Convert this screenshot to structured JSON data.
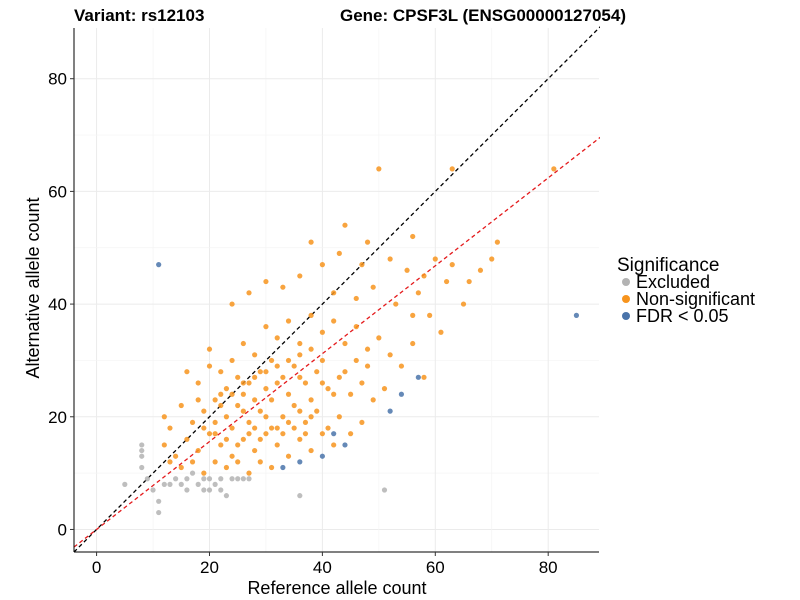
{
  "chart_data": {
    "type": "scatter",
    "title_left": "Variant: rs12103",
    "title_right": "Gene: CPSF3L (ENSG00000127054)",
    "xlabel": "Reference allele count",
    "ylabel": "Alternative allele count",
    "xlim": [
      -4,
      89
    ],
    "ylim": [
      -4,
      89
    ],
    "x_ticks": [
      0,
      20,
      40,
      60,
      80
    ],
    "y_ticks": [
      0,
      20,
      40,
      60,
      80
    ],
    "grid": true,
    "legend": {
      "title": "Significance",
      "position": "right",
      "entries": [
        {
          "name": "Excluded",
          "color": "#b3b3b3"
        },
        {
          "name": "Non-significant",
          "color": "#f7941d"
        },
        {
          "name": "FDR < 0.05",
          "color": "#4a74aa"
        }
      ]
    },
    "reference_lines": [
      {
        "name": "identity",
        "slope": 1,
        "intercept": 0,
        "color": "#000000",
        "style": "dashed"
      },
      {
        "name": "fit",
        "slope": 0.78,
        "intercept": 0,
        "color": "#e41a1c",
        "style": "dashed"
      }
    ],
    "series": [
      {
        "name": "Excluded",
        "color": "#b3b3b3",
        "points": [
          [
            5,
            8
          ],
          [
            8,
            15
          ],
          [
            8,
            14
          ],
          [
            8,
            13
          ],
          [
            8,
            11
          ],
          [
            9,
            9
          ],
          [
            10,
            7
          ],
          [
            11,
            5
          ],
          [
            11,
            3
          ],
          [
            12,
            8
          ],
          [
            13,
            8
          ],
          [
            14,
            9
          ],
          [
            15,
            8
          ],
          [
            16,
            9
          ],
          [
            16,
            7
          ],
          [
            17,
            10
          ],
          [
            18,
            8
          ],
          [
            19,
            9
          ],
          [
            19,
            7
          ],
          [
            20,
            9
          ],
          [
            20,
            7
          ],
          [
            21,
            8
          ],
          [
            22,
            9
          ],
          [
            22,
            7
          ],
          [
            23,
            6
          ],
          [
            24,
            9
          ],
          [
            25,
            9
          ],
          [
            26,
            9
          ],
          [
            27,
            9
          ],
          [
            36,
            6
          ],
          [
            51,
            7
          ]
        ]
      },
      {
        "name": "Non-significant",
        "color": "#f7941d",
        "points": [
          [
            50,
            64
          ],
          [
            63,
            64
          ],
          [
            81,
            64
          ],
          [
            68,
            46
          ],
          [
            71,
            51
          ],
          [
            66,
            44
          ],
          [
            62,
            44
          ],
          [
            44,
            54
          ],
          [
            48,
            51
          ],
          [
            56,
            52
          ],
          [
            60,
            48
          ],
          [
            38,
            51
          ],
          [
            43,
            49
          ],
          [
            47,
            47
          ],
          [
            52,
            48
          ],
          [
            55,
            46
          ],
          [
            58,
            45
          ],
          [
            63,
            47
          ],
          [
            65,
            40
          ],
          [
            70,
            48
          ],
          [
            57,
            42
          ],
          [
            59,
            38
          ],
          [
            61,
            35
          ],
          [
            24,
            40
          ],
          [
            27,
            42
          ],
          [
            30,
            44
          ],
          [
            33,
            43
          ],
          [
            36,
            45
          ],
          [
            40,
            47
          ],
          [
            42,
            42
          ],
          [
            46,
            41
          ],
          [
            49,
            43
          ],
          [
            53,
            40
          ],
          [
            56,
            38
          ],
          [
            24,
            30
          ],
          [
            26,
            33
          ],
          [
            28,
            31
          ],
          [
            30,
            36
          ],
          [
            32,
            34
          ],
          [
            34,
            37
          ],
          [
            36,
            33
          ],
          [
            38,
            38
          ],
          [
            40,
            35
          ],
          [
            42,
            37
          ],
          [
            44,
            33
          ],
          [
            46,
            36
          ],
          [
            48,
            32
          ],
          [
            50,
            34
          ],
          [
            52,
            31
          ],
          [
            54,
            29
          ],
          [
            56,
            33
          ],
          [
            58,
            27
          ],
          [
            16,
            28
          ],
          [
            18,
            26
          ],
          [
            20,
            29
          ],
          [
            22,
            24
          ],
          [
            25,
            27
          ],
          [
            27,
            26
          ],
          [
            29,
            28
          ],
          [
            31,
            30
          ],
          [
            33,
            27
          ],
          [
            35,
            29
          ],
          [
            37,
            26
          ],
          [
            39,
            28
          ],
          [
            41,
            25
          ],
          [
            43,
            27
          ],
          [
            45,
            24
          ],
          [
            47,
            26
          ],
          [
            49,
            23
          ],
          [
            51,
            25
          ],
          [
            12,
            20
          ],
          [
            13,
            18
          ],
          [
            15,
            22
          ],
          [
            17,
            19
          ],
          [
            19,
            21
          ],
          [
            21,
            23
          ],
          [
            23,
            20
          ],
          [
            25,
            22
          ],
          [
            27,
            19
          ],
          [
            29,
            21
          ],
          [
            31,
            23
          ],
          [
            33,
            20
          ],
          [
            35,
            22
          ],
          [
            37,
            19
          ],
          [
            39,
            21
          ],
          [
            41,
            18
          ],
          [
            43,
            20
          ],
          [
            45,
            17
          ],
          [
            47,
            19
          ],
          [
            12,
            15
          ],
          [
            14,
            13
          ],
          [
            16,
            16
          ],
          [
            18,
            14
          ],
          [
            20,
            17
          ],
          [
            22,
            15
          ],
          [
            24,
            13
          ],
          [
            26,
            16
          ],
          [
            28,
            14
          ],
          [
            30,
            17
          ],
          [
            32,
            15
          ],
          [
            34,
            13
          ],
          [
            36,
            16
          ],
          [
            38,
            14
          ],
          [
            40,
            17
          ],
          [
            42,
            15
          ],
          [
            13,
            12
          ],
          [
            15,
            11
          ],
          [
            17,
            12
          ],
          [
            19,
            10
          ],
          [
            21,
            12
          ],
          [
            23,
            11
          ],
          [
            25,
            12
          ],
          [
            27,
            10
          ],
          [
            29,
            12
          ],
          [
            31,
            11
          ],
          [
            20,
            32
          ],
          [
            22,
            28
          ],
          [
            23,
            25
          ],
          [
            26,
            24
          ],
          [
            28,
            23
          ],
          [
            30,
            25
          ],
          [
            32,
            26
          ],
          [
            34,
            24
          ],
          [
            36,
            27
          ],
          [
            38,
            23
          ],
          [
            40,
            26
          ],
          [
            42,
            24
          ],
          [
            44,
            28
          ],
          [
            46,
            30
          ],
          [
            48,
            29
          ],
          [
            18,
            23
          ],
          [
            21,
            19
          ],
          [
            24,
            18
          ],
          [
            26,
            21
          ],
          [
            28,
            18
          ],
          [
            30,
            20
          ],
          [
            32,
            18
          ],
          [
            34,
            19
          ],
          [
            36,
            21
          ],
          [
            38,
            20
          ],
          [
            22,
            22
          ],
          [
            24,
            24
          ],
          [
            26,
            26
          ],
          [
            28,
            27
          ],
          [
            30,
            28
          ],
          [
            32,
            29
          ],
          [
            34,
            30
          ],
          [
            36,
            31
          ],
          [
            38,
            32
          ],
          [
            40,
            30
          ],
          [
            19,
            18
          ],
          [
            21,
            17
          ],
          [
            23,
            16
          ],
          [
            25,
            15
          ],
          [
            27,
            17
          ],
          [
            29,
            16
          ],
          [
            31,
            18
          ],
          [
            33,
            17
          ],
          [
            35,
            18
          ],
          [
            37,
            17
          ]
        ]
      },
      {
        "name": "FDR < 0.05",
        "color": "#4a74aa",
        "points": [
          [
            11,
            47
          ],
          [
            85,
            38
          ],
          [
            57,
            27
          ],
          [
            54,
            24
          ],
          [
            52,
            21
          ],
          [
            42,
            17
          ],
          [
            44,
            15
          ],
          [
            40,
            13
          ],
          [
            36,
            12
          ],
          [
            33,
            11
          ]
        ]
      }
    ]
  }
}
